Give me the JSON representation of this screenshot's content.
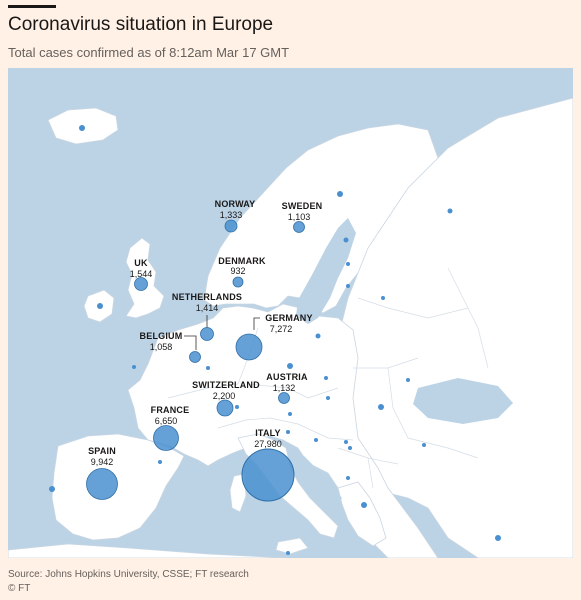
{
  "header": {
    "title": "Coronavirus situation in Europe",
    "subtitle": "Total cases confirmed as of 8:12am Mar 17 GMT"
  },
  "footer": {
    "source": "Source: Johns Hopkins University, CSSE; FT research",
    "credit": "© FT"
  },
  "colors": {
    "background": "#fff1e5",
    "sea": "#bcd3e6",
    "land": "#ffffff",
    "bubble": "#4a90d0"
  },
  "countries": [
    {
      "name": "NORWAY",
      "cases": "1,333"
    },
    {
      "name": "SWEDEN",
      "cases": "1,103"
    },
    {
      "name": "UK",
      "cases": "1,544"
    },
    {
      "name": "DENMARK",
      "cases": "932"
    },
    {
      "name": "NETHERLANDS",
      "cases": "1,414"
    },
    {
      "name": "BELGIUM",
      "cases": "1,058"
    },
    {
      "name": "GERMANY",
      "cases": "7,272"
    },
    {
      "name": "AUSTRIA",
      "cases": "1,132"
    },
    {
      "name": "SWITZERLAND",
      "cases": "2,200"
    },
    {
      "name": "FRANCE",
      "cases": "6,650"
    },
    {
      "name": "ITALY",
      "cases": "27,980"
    },
    {
      "name": "SPAIN",
      "cases": "9,942"
    }
  ]
}
